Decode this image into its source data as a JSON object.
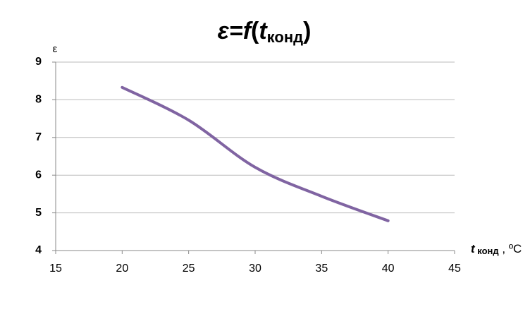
{
  "chart_data": {
    "type": "line",
    "title": [
      "ε=",
      "f",
      "(",
      "t",
      "конд",
      ")"
    ],
    "y_label": "ε",
    "x_label": [
      "t",
      " конд",
      " , ºC"
    ],
    "x": [
      20,
      25,
      30,
      35,
      40
    ],
    "series": [
      {
        "color": "#8064a2",
        "values": [
          8.33,
          7.46,
          6.21,
          5.44,
          4.79
        ]
      }
    ],
    "xlim": [
      15,
      45
    ],
    "xticks": [
      15,
      20,
      25,
      30,
      35,
      40,
      45
    ],
    "ylim": [
      4,
      9
    ],
    "yticks": [
      4,
      5,
      6,
      7,
      8,
      9
    ],
    "grid": true,
    "smooth": true
  }
}
